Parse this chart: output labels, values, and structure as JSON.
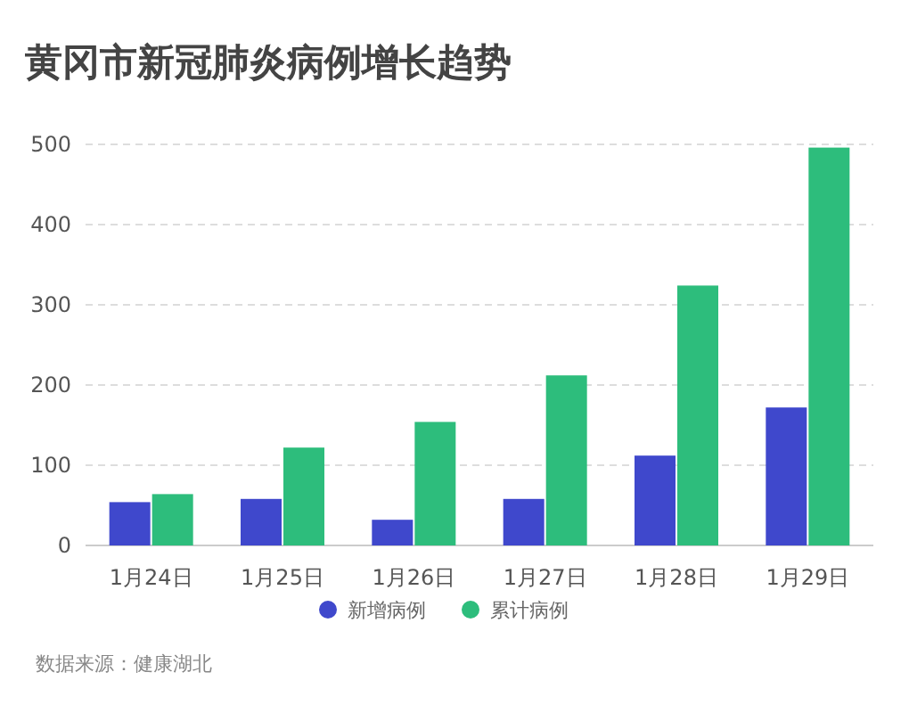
{
  "chart_data": {
    "type": "bar",
    "title": "黄冈市新冠肺炎病例增长趋势",
    "categories": [
      "1月24日",
      "1月25日",
      "1月26日",
      "1月27日",
      "1月28日",
      "1月29日"
    ],
    "series": [
      {
        "name": "新增病例",
        "color": "#3f48cc",
        "values": [
          54,
          58,
          32,
          58,
          112,
          172
        ]
      },
      {
        "name": "累计病例",
        "color": "#2dbd7c",
        "values": [
          64,
          122,
          154,
          212,
          324,
          496
        ]
      }
    ],
    "ylim": [
      0,
      500
    ],
    "yticks": [
      0,
      100,
      200,
      300,
      400,
      500
    ],
    "grid": "y",
    "legend": "bottom",
    "annotations": [
      "数据来源：健康湖北"
    ]
  }
}
